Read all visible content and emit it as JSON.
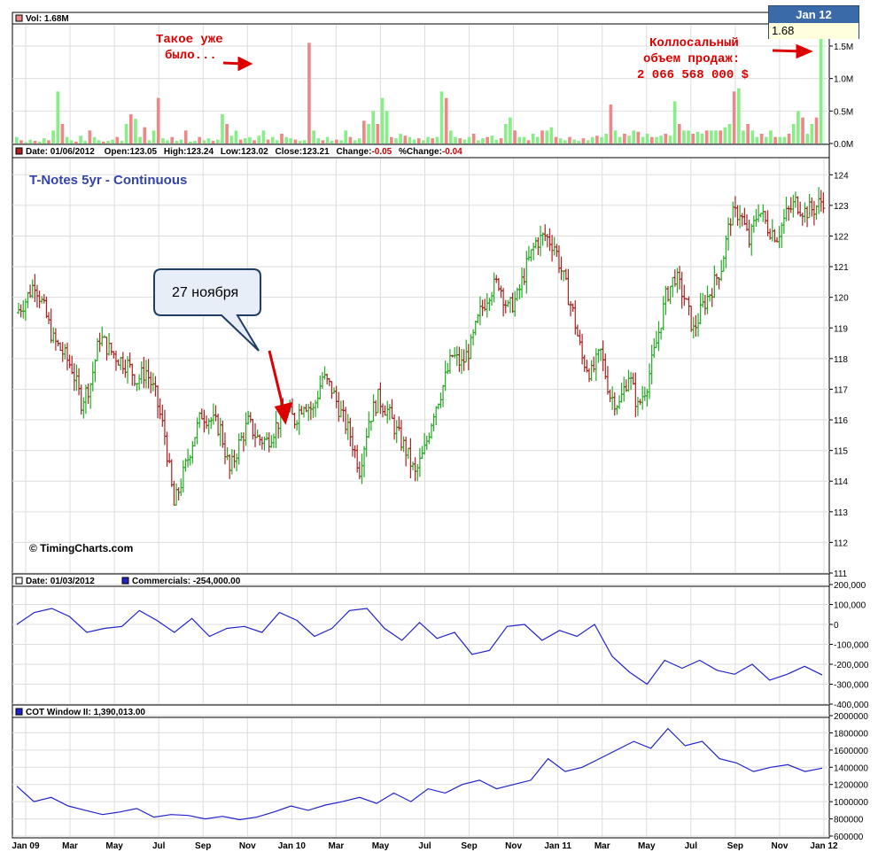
{
  "colors": {
    "up": "#22aa22",
    "down": "#aa2222",
    "vol_up": "#88ee88",
    "vol_down": "#ee8888",
    "line": "#2222cc",
    "annotation": "#dd0000",
    "title": "#3344aa",
    "grid": "#dddddd"
  },
  "tooltip": {
    "date": "Jan 12",
    "value": "1.68"
  },
  "volume_panel": {
    "header": "Vol: 1.68M",
    "annotation_left": [
      "Такое уже",
      "было..."
    ],
    "annotation_right": [
      "Коллосальный",
      "объем продаж:",
      "2 066 568 000 $"
    ]
  },
  "price_panel": {
    "header": {
      "date": "Date: 01/06/2012",
      "open": "Open:123.05",
      "high": "High:123.24",
      "low": "Low:123.02",
      "close": "Close:123.21",
      "change_label": "Change:",
      "change_value": "-0.05",
      "pchange_label": "%Change:",
      "pchange_value": "-0.04"
    },
    "title": "T-Notes 5yr - Continuous",
    "copyright": "© TimingCharts.com",
    "callout": "27 ноября"
  },
  "commercials_panel": {
    "header_date": "Date: 01/03/2012",
    "header_series": "Commercials: -254,000.00"
  },
  "cot_panel": {
    "header": "COT Window II: 1,390,013.00"
  },
  "x_labels": [
    "Jan 09",
    "Mar",
    "May",
    "Jul",
    "Sep",
    "Nov",
    "Jan 10",
    "Mar",
    "May",
    "Jul",
    "Sep",
    "Nov",
    "Jan 11",
    "Mar",
    "May",
    "Jul",
    "Sep",
    "Nov",
    "Jan 12"
  ],
  "chart_data": [
    {
      "type": "bar",
      "name": "Volume",
      "ylim": [
        0,
        1.8
      ],
      "y_ticks": [
        "0.0M",
        "0.5M",
        "1.0M",
        "1.5M"
      ],
      "tick_values": [
        0,
        0.5,
        1.0,
        1.5
      ],
      "values": [
        0.1,
        0.05,
        0.02,
        0.06,
        0.04,
        0.03,
        0.08,
        0.05,
        0.2,
        0.8,
        0.3,
        0.1,
        0.05,
        0.03,
        0.12,
        0.04,
        0.2,
        0.1,
        0.05,
        0.03,
        0.04,
        0.06,
        0.1,
        0.04,
        0.3,
        0.45,
        0.38,
        0.1,
        0.25,
        0.05,
        0.2,
        0.7,
        0.08,
        0.05,
        0.1,
        0.04,
        0.06,
        0.2,
        0.03,
        0.04,
        0.1,
        0.05,
        0.08,
        0.04,
        0.06,
        0.45,
        0.3,
        0.12,
        0.2,
        0.06,
        0.08,
        0.1,
        0.05,
        0.12,
        0.2,
        0.06,
        0.1,
        0.05,
        0.15,
        0.1,
        0.08,
        0.06,
        0.04,
        0.05,
        1.55,
        0.2,
        0.08,
        0.05,
        0.1,
        0.04,
        0.06,
        0.05,
        0.2,
        0.1,
        0.05,
        0.08,
        0.35,
        0.3,
        0.5,
        0.3,
        0.7,
        0.5,
        0.1,
        0.08,
        0.15,
        0.12,
        0.1,
        0.06,
        0.08,
        0.05,
        0.1,
        0.08,
        0.1,
        0.8,
        0.7,
        0.2,
        0.1,
        0.08,
        0.06,
        0.1,
        0.15,
        0.05,
        0.08,
        0.1,
        0.12,
        0.06,
        0.08,
        0.3,
        0.4,
        0.2,
        0.1,
        0.1,
        0.05,
        0.15,
        0.1,
        0.2,
        0.2,
        0.25,
        0.1,
        0.08,
        0.05,
        0.1,
        0.06,
        0.04,
        0.08,
        0.05,
        0.1,
        0.12,
        0.1,
        0.15,
        0.6,
        0.2,
        0.1,
        0.15,
        0.12,
        0.2,
        0.18,
        0.1,
        0.15,
        0.1,
        0.1,
        0.12,
        0.15,
        0.12,
        0.65,
        0.3,
        0.2,
        0.2,
        0.15,
        0.18,
        0.15,
        0.2,
        0.2,
        0.2,
        0.2,
        0.25,
        0.3,
        0.8,
        0.85,
        0.2,
        0.3,
        0.2,
        0.1,
        0.15,
        0.1,
        0.2,
        0.1,
        0.1,
        0.1,
        0.15,
        0.3,
        0.5,
        0.4,
        0.15,
        0.3,
        0.4,
        1.68
      ]
    },
    {
      "type": "ohlc",
      "name": "T-Notes 5yr - Continuous",
      "ylim": [
        111,
        124.5
      ],
      "y_ticks": [
        111,
        112,
        113,
        114,
        115,
        116,
        117,
        118,
        119,
        120,
        121,
        122,
        123,
        124
      ],
      "close": [
        119.5,
        119.9,
        120.5,
        119.6,
        118.6,
        118.2,
        117.7,
        116.6,
        117.2,
        118.7,
        118.3,
        118.0,
        117.8,
        117.3,
        117.6,
        116.8,
        115.5,
        113.2,
        114.2,
        115.3,
        116.2,
        116.0,
        115.7,
        114.3,
        115.2,
        115.9,
        115.4,
        115.3,
        115.8,
        116.3,
        116.0,
        116.6,
        116.3,
        117.4,
        117.0,
        116.2,
        115.5,
        114.4,
        116.0,
        116.7,
        116.3,
        115.6,
        115.0,
        114.2,
        115.0,
        116.3,
        117.1,
        118.1,
        117.8,
        118.4,
        119.5,
        120.2,
        120.5,
        119.6,
        120.0,
        121.0,
        121.8,
        122.0,
        121.7,
        120.6,
        119.5,
        118.0,
        117.5,
        118.2,
        116.8,
        116.5,
        117.5,
        116.4,
        117.2,
        118.5,
        120.0,
        120.7,
        120.0,
        118.9,
        119.7,
        120.3,
        121.0,
        122.6,
        122.8,
        121.8,
        122.9,
        122.3,
        122.0,
        122.7,
        123.1,
        122.8,
        122.9,
        123.2
      ]
    },
    {
      "type": "line",
      "name": "Commercials",
      "ylim": [
        -400000,
        200000
      ],
      "y_ticks": [
        "200,000",
        "100,000",
        "0",
        "-100,000",
        "-200,000",
        "-300,000",
        "-400,000"
      ],
      "tick_values": [
        200000,
        100000,
        0,
        -100000,
        -200000,
        -300000,
        -400000
      ],
      "values": [
        0,
        60000,
        80000,
        40000,
        -40000,
        -20000,
        -10000,
        70000,
        20000,
        -40000,
        30000,
        -60000,
        -20000,
        -10000,
        -40000,
        60000,
        20000,
        -60000,
        -20000,
        70000,
        80000,
        -20000,
        -80000,
        10000,
        -70000,
        -40000,
        -150000,
        -130000,
        -10000,
        0,
        -80000,
        -30000,
        -60000,
        0,
        -160000,
        -240000,
        -300000,
        -180000,
        -220000,
        -180000,
        -230000,
        -250000,
        -200000,
        -280000,
        -250000,
        -210000,
        -254000
      ]
    },
    {
      "type": "line",
      "name": "COT Window II",
      "ylim": [
        600000,
        2000000
      ],
      "y_ticks": [
        "2000000",
        "1800000",
        "1600000",
        "1400000",
        "1200000",
        "1000000",
        "800000",
        "600000"
      ],
      "tick_values": [
        2000000,
        1800000,
        1600000,
        1400000,
        1200000,
        1000000,
        800000,
        600000
      ],
      "values": [
        1180000,
        1000000,
        1050000,
        950000,
        900000,
        850000,
        880000,
        920000,
        820000,
        850000,
        840000,
        800000,
        830000,
        790000,
        820000,
        880000,
        950000,
        900000,
        960000,
        1000000,
        1050000,
        980000,
        1100000,
        1000000,
        1150000,
        1100000,
        1200000,
        1250000,
        1150000,
        1200000,
        1250000,
        1500000,
        1350000,
        1400000,
        1500000,
        1600000,
        1700000,
        1620000,
        1850000,
        1650000,
        1700000,
        1500000,
        1450000,
        1350000,
        1400000,
        1430000,
        1350000,
        1390013
      ]
    }
  ]
}
